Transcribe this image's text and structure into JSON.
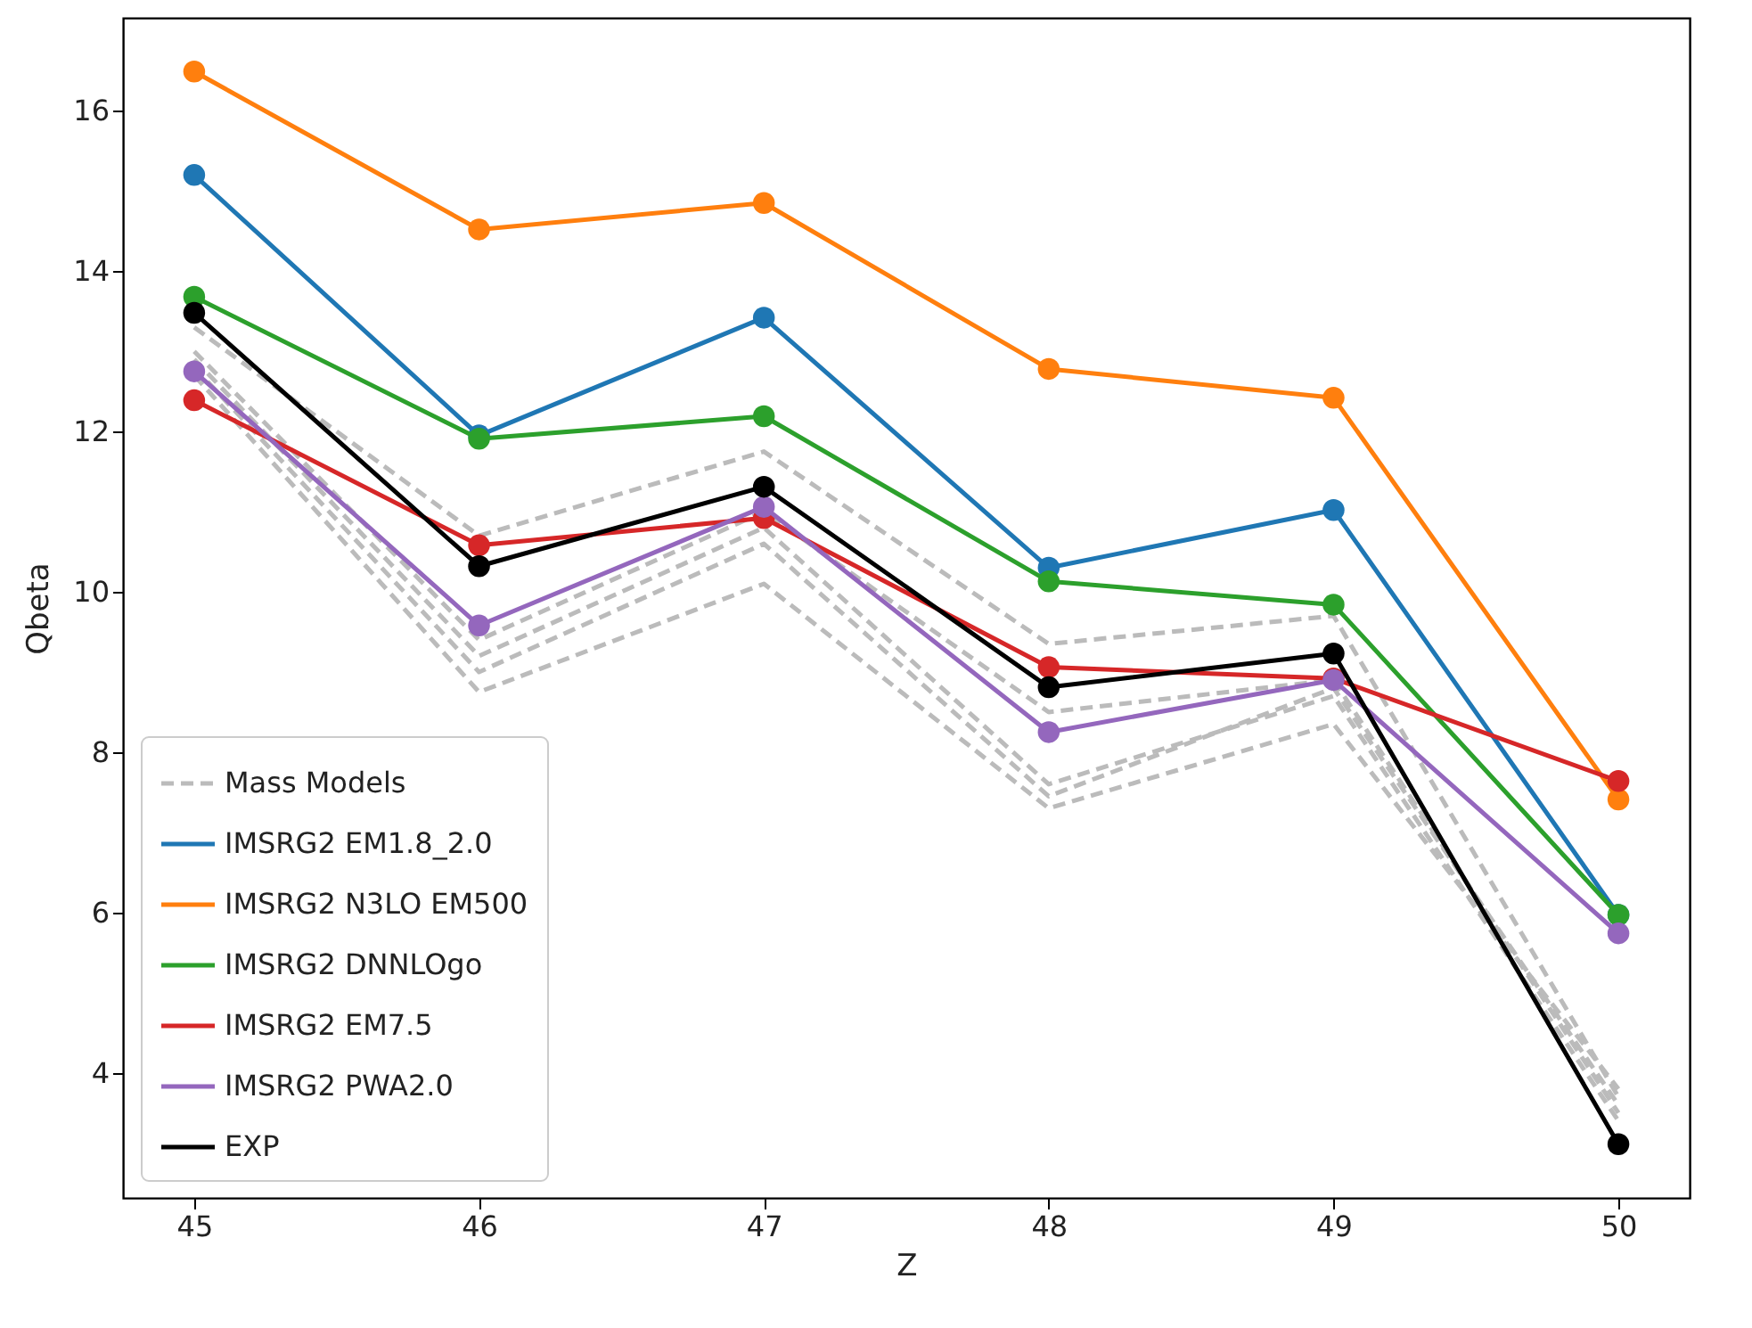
{
  "chart_data": {
    "type": "line",
    "xlabel": "Z",
    "ylabel": "Qbeta",
    "x": [
      45,
      46,
      47,
      48,
      49,
      50
    ],
    "xlim": [
      44.75,
      50.25
    ],
    "xticks": [
      45,
      46,
      47,
      48,
      49,
      50
    ],
    "ylim": [
      2.44,
      17.16
    ],
    "yticks": [
      4,
      6,
      8,
      10,
      12,
      14,
      16
    ],
    "grid": false,
    "legend": "bottom left",
    "series": [
      {
        "name": "Mass Models",
        "color": "#bbbbbb",
        "line_style": "dashed",
        "marker": "none",
        "values": [
          13.3,
          10.7,
          11.75,
          9.35,
          9.7,
          3.7
        ]
      },
      {
        "color": "#bbbbbb",
        "line_style": "dashed",
        "marker": "none",
        "values": [
          13.0,
          9.4,
          11.0,
          8.5,
          8.9,
          3.5
        ]
      },
      {
        "color": "#bbbbbb",
        "line_style": "dashed",
        "marker": "none",
        "values": [
          12.9,
          9.2,
          10.8,
          7.6,
          8.7,
          3.4
        ]
      },
      {
        "color": "#bbbbbb",
        "line_style": "dashed",
        "marker": "none",
        "values": [
          12.8,
          9.0,
          10.6,
          7.45,
          8.8,
          3.6
        ]
      },
      {
        "color": "#bbbbbb",
        "line_style": "dashed",
        "marker": "none",
        "values": [
          12.7,
          8.75,
          10.1,
          7.3,
          8.35,
          3.8
        ]
      },
      {
        "name": "IMSRG2 EM1.8_2.0",
        "color": "#1f77b4",
        "line_style": "solid",
        "marker": "circle",
        "values": [
          15.2,
          11.95,
          13.42,
          10.3,
          11.02,
          5.97
        ]
      },
      {
        "name": "IMSRG2 N3LO EM500",
        "color": "#ff7f0e",
        "line_style": "solid",
        "marker": "circle",
        "values": [
          16.49,
          14.52,
          14.85,
          12.78,
          12.42,
          7.41
        ]
      },
      {
        "name": "IMSRG2 DNNLOgo",
        "color": "#2ca02c",
        "line_style": "solid",
        "marker": "circle",
        "values": [
          13.68,
          11.91,
          12.19,
          10.13,
          9.84,
          5.97
        ]
      },
      {
        "name": "IMSRG2 EM7.5",
        "color": "#d62728",
        "line_style": "solid",
        "marker": "circle",
        "values": [
          12.39,
          10.58,
          10.92,
          9.06,
          8.92,
          7.64
        ]
      },
      {
        "name": "IMSRG2 PWA2.0",
        "color": "#9467bd",
        "line_style": "solid",
        "marker": "circle",
        "values": [
          12.75,
          9.58,
          11.06,
          8.25,
          8.9,
          5.74
        ]
      },
      {
        "name": "EXP",
        "color": "#000000",
        "line_style": "solid",
        "marker": "circle",
        "values": [
          13.48,
          10.32,
          11.31,
          8.81,
          9.23,
          3.11
        ]
      }
    ]
  }
}
